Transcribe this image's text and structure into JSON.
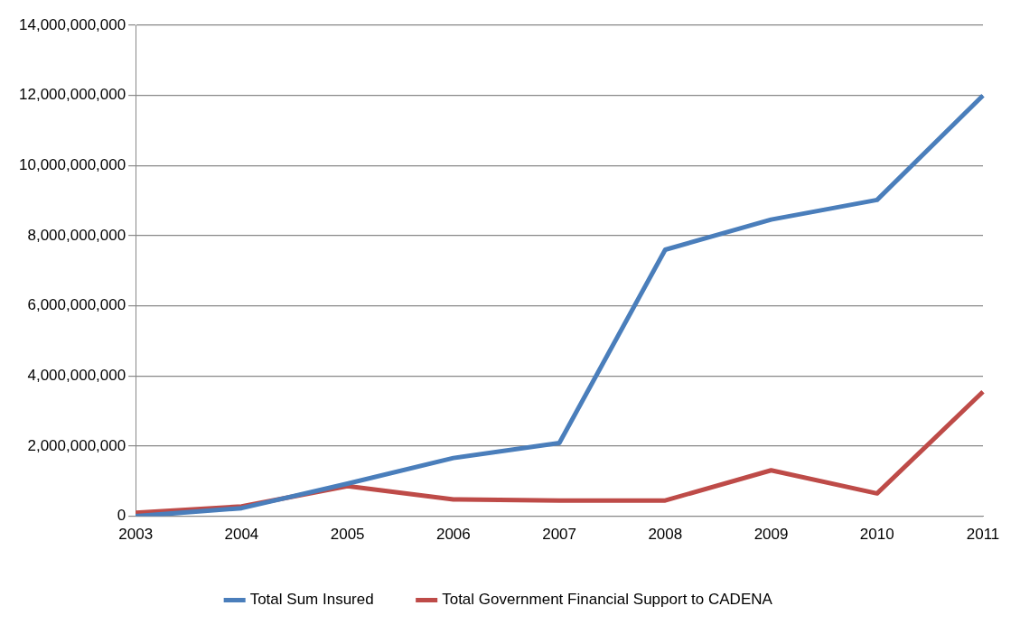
{
  "chart_data": {
    "type": "line",
    "categories": [
      "2003",
      "2004",
      "2005",
      "2006",
      "2007",
      "2008",
      "2009",
      "2010",
      "2011"
    ],
    "series": [
      {
        "name": "Total Sum Insured",
        "color": "#4a7ebb",
        "values": [
          0,
          230000000,
          930000000,
          1660000000,
          2090000000,
          7600000000,
          8460000000,
          9020000000,
          12000000000
        ]
      },
      {
        "name": "Total Government Financial Support to CADENA",
        "color": "#be4b48",
        "values": [
          100000000,
          280000000,
          860000000,
          480000000,
          450000000,
          450000000,
          1310000000,
          650000000,
          3550000000
        ]
      }
    ],
    "ylim": [
      0,
      14000000000
    ],
    "yticks": [
      {
        "value": 0,
        "label": "0"
      },
      {
        "value": 2000000000,
        "label": "2,000,000,000"
      },
      {
        "value": 4000000000,
        "label": "4,000,000,000"
      },
      {
        "value": 6000000000,
        "label": "6,000,000,000"
      },
      {
        "value": 8000000000,
        "label": "8,000,000,000"
      },
      {
        "value": 10000000000,
        "label": "10,000,000,000"
      },
      {
        "value": 12000000000,
        "label": "12,000,000,000"
      },
      {
        "value": 14000000000,
        "label": "14,000,000,000"
      }
    ],
    "grid": "y",
    "legend": "bottom",
    "marker": "none",
    "line_style": "solid"
  }
}
